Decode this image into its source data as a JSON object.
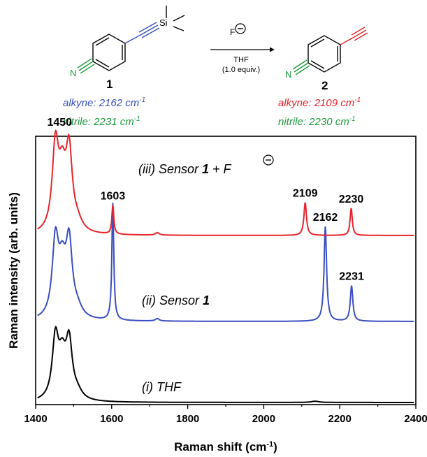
{
  "scheme": {
    "reagent": "F",
    "solvent": "THF",
    "equiv": "(1.0 equiv.)",
    "compound1": {
      "number": "1",
      "si_label": "Si",
      "n_label": "N",
      "alkyne": "alkyne: 2162 cm",
      "nitrile": "nitrile: 2231 cm",
      "unit_sup": "-1"
    },
    "compound2": {
      "number": "2",
      "n_label": "N",
      "alkyne": "alkyne: 2109 cm",
      "nitrile": "nitrile: 2230 cm",
      "unit_sup": "-1"
    },
    "colors": {
      "blue": "#3a4fc0",
      "red": "#e8242b",
      "green": "#1e9a3c",
      "black": "#000000"
    }
  },
  "chart_data": {
    "type": "line",
    "xlabel": "Raman shift (cm",
    "xlabel_sup": "-1",
    "xlabel_end": ")",
    "ylabel": "Raman intensity (arb. units)",
    "xlim": [
      1400,
      2400
    ],
    "xticks": [
      "1400",
      "1600",
      "1800",
      "2000",
      "2200",
      "2400"
    ],
    "series": [
      {
        "name": "(i) THF",
        "color": "#000000",
        "peaks": [
          {
            "x": 1452,
            "h": 0.72,
            "w": 10
          },
          {
            "x": 1470,
            "h": 0.45,
            "w": 12
          },
          {
            "x": 1488,
            "h": 0.66,
            "w": 10
          },
          {
            "x": 1510,
            "h": 0.08,
            "w": 15
          },
          {
            "x": 2135,
            "h": 0.015,
            "w": 12
          }
        ]
      },
      {
        "name": "(ii) Sensor 1",
        "color": "#3a4fc0",
        "peaks": [
          {
            "x": 1452,
            "h": 0.9,
            "w": 10
          },
          {
            "x": 1470,
            "h": 0.55,
            "w": 12
          },
          {
            "x": 1488,
            "h": 0.86,
            "w": 10
          },
          {
            "x": 1510,
            "h": 0.1,
            "w": 15
          },
          {
            "x": 1603,
            "h": 1.42,
            "w": 3
          },
          {
            "x": 1720,
            "h": 0.03,
            "w": 6
          },
          {
            "x": 2162,
            "h": 1.15,
            "w": 4
          },
          {
            "x": 2231,
            "h": 0.43,
            "w": 4
          }
        ]
      },
      {
        "name": "(iii) Sensor 1 + F",
        "color": "#e8242b",
        "peaks": [
          {
            "x": 1452,
            "h": 1.0,
            "w": 10
          },
          {
            "x": 1470,
            "h": 0.62,
            "w": 12
          },
          {
            "x": 1488,
            "h": 0.92,
            "w": 10
          },
          {
            "x": 1510,
            "h": 0.1,
            "w": 15
          },
          {
            "x": 1603,
            "h": 0.35,
            "w": 3
          },
          {
            "x": 1720,
            "h": 0.03,
            "w": 6
          },
          {
            "x": 2109,
            "h": 0.4,
            "w": 4
          },
          {
            "x": 2230,
            "h": 0.33,
            "w": 3.5
          }
        ]
      }
    ],
    "peak_labels": [
      {
        "text": "1450",
        "x": 1452,
        "series": 2
      },
      {
        "text": "1603",
        "x": 1603,
        "series": 2
      },
      {
        "text": "2109",
        "x": 2109,
        "series": 2
      },
      {
        "text": "2230",
        "x": 2230,
        "series": 2
      },
      {
        "text": "2162",
        "x": 2162,
        "series": 1
      },
      {
        "text": "2231",
        "x": 2231,
        "series": 1
      }
    ],
    "trace_labels": {
      "i": "(i) THF",
      "ii_prefix": "(ii) Sensor ",
      "ii_bold": "1",
      "iii_prefix": "(iii) Sensor ",
      "iii_bold": "1",
      "iii_suffix": " + F"
    }
  }
}
